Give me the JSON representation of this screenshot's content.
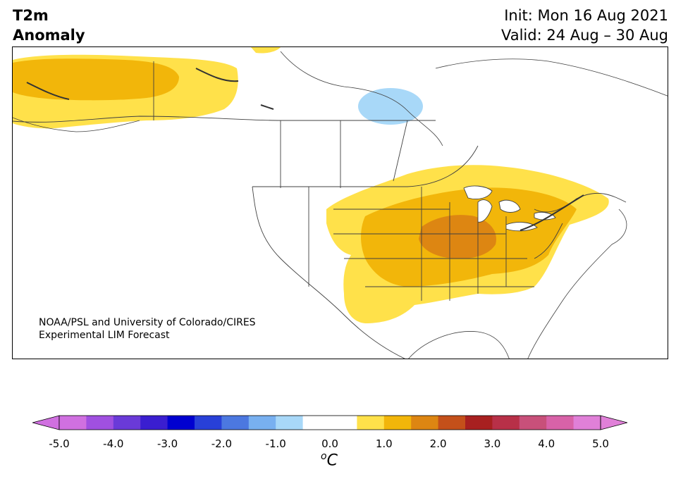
{
  "header": {
    "title_line1": "T2m",
    "title_line2": "Anomaly",
    "init": "Init: Mon 16 Aug 2021",
    "valid": "Valid: 24 Aug – 30 Aug"
  },
  "map": {
    "region": "North America",
    "credit_line1": "NOAA/PSL and University of Colorado/CIRES",
    "credit_line2": "Experimental LIM Forecast",
    "anomaly_colors": {
      "plus_0_5_to_1": "#ffe14a",
      "plus_1_to_1_5": "#f2b60a",
      "plus_1_5_to_2": "#dd8612",
      "minus_0_5_to_1": "#a8d8f8"
    }
  },
  "colorbar": {
    "unit_base": "C",
    "unit_sup": "o",
    "ticks": [
      "-5.0",
      "-4.0",
      "-3.0",
      "-2.0",
      "-1.0",
      "0.0",
      "1.0",
      "2.0",
      "3.0",
      "4.0",
      "5.0"
    ],
    "colors": [
      "#d070e0",
      "#a050e0",
      "#6a3ad8",
      "#3a1ed0",
      "#0000d0",
      "#2840d8",
      "#4c78e0",
      "#78b0f0",
      "#a8d8f8",
      "#ffffff",
      "#ffffff",
      "#ffe14a",
      "#f2b60a",
      "#dd8612",
      "#c4501a",
      "#a82020",
      "#b83048",
      "#c8507a",
      "#d862a8",
      "#e080d8"
    ],
    "underflow_color": "#d070e0",
    "overflow_color": "#e080d8"
  }
}
